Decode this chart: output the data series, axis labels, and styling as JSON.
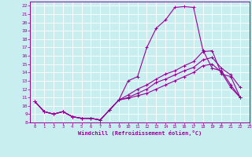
{
  "xlabel": "Windchill (Refroidissement éolien,°C)",
  "bg_color": "#c8eef0",
  "line_color": "#990099",
  "grid_color": "#ffffff",
  "xlim": [
    -0.5,
    23
  ],
  "ylim": [
    8,
    22.5
  ],
  "xticks": [
    0,
    1,
    2,
    3,
    4,
    5,
    6,
    7,
    8,
    9,
    10,
    11,
    12,
    13,
    14,
    15,
    16,
    17,
    18,
    19,
    20,
    21,
    22,
    23
  ],
  "yticks": [
    8,
    9,
    10,
    11,
    12,
    13,
    14,
    15,
    16,
    17,
    18,
    19,
    20,
    21,
    22
  ],
  "line1_x": [
    0,
    1,
    2,
    3,
    4,
    5,
    6,
    7,
    8,
    9,
    10,
    11,
    12,
    13,
    14,
    15,
    16,
    17,
    18,
    19,
    20,
    21,
    22
  ],
  "line1_y": [
    10.5,
    9.3,
    9.0,
    9.3,
    8.7,
    8.5,
    8.5,
    8.3,
    9.5,
    10.7,
    13.0,
    13.5,
    17.0,
    19.3,
    20.3,
    21.8,
    21.9,
    21.8,
    16.7,
    14.5,
    14.2,
    12.5,
    11.0
  ],
  "line2_x": [
    0,
    1,
    2,
    3,
    4,
    5,
    6,
    7,
    8,
    9,
    10,
    11,
    12,
    13,
    14,
    15,
    16,
    17,
    18,
    19,
    20,
    21,
    22
  ],
  "line2_y": [
    10.5,
    9.3,
    9.0,
    9.3,
    8.7,
    8.5,
    8.5,
    8.3,
    9.5,
    10.7,
    11.3,
    12.0,
    12.5,
    13.2,
    13.8,
    14.2,
    14.8,
    15.3,
    16.5,
    16.6,
    13.8,
    13.5,
    11.0
  ],
  "line3_x": [
    0,
    1,
    2,
    3,
    4,
    5,
    6,
    7,
    8,
    9,
    10,
    11,
    12,
    13,
    14,
    15,
    16,
    17,
    18,
    19,
    20,
    21,
    22
  ],
  "line3_y": [
    10.5,
    9.3,
    9.0,
    9.3,
    8.7,
    8.5,
    8.5,
    8.3,
    9.5,
    10.7,
    11.0,
    11.5,
    12.0,
    12.8,
    13.2,
    13.7,
    14.2,
    14.6,
    15.5,
    15.8,
    14.5,
    13.7,
    12.2
  ],
  "line4_x": [
    0,
    1,
    2,
    3,
    4,
    5,
    6,
    7,
    8,
    9,
    10,
    11,
    12,
    13,
    14,
    15,
    16,
    17,
    18,
    19,
    20,
    21,
    22
  ],
  "line4_y": [
    10.5,
    9.3,
    9.0,
    9.3,
    8.7,
    8.5,
    8.5,
    8.3,
    9.5,
    10.7,
    10.9,
    11.2,
    11.5,
    12.0,
    12.5,
    13.0,
    13.5,
    14.0,
    14.8,
    15.0,
    14.0,
    12.2,
    11.0
  ]
}
